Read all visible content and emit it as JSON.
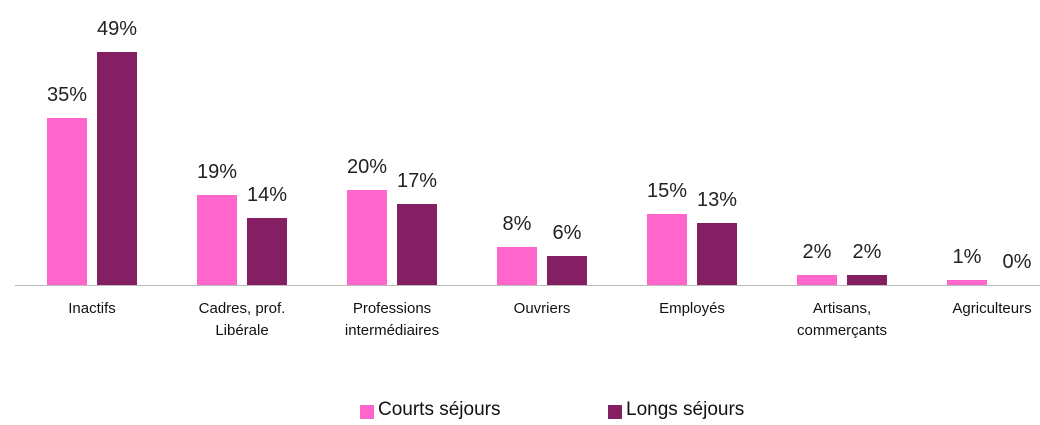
{
  "chart_data": {
    "type": "bar",
    "categories": [
      "Inactifs",
      "Cadres, prof. Libérale",
      "Professions intermédiaires",
      "Ouvriers",
      "Employés",
      "Artisans, commerçants",
      "Agriculteurs"
    ],
    "series": [
      {
        "name": "Courts séjours",
        "color": "#ff66cc",
        "values": [
          35,
          19,
          20,
          8,
          15,
          2,
          1
        ],
        "value_labels": [
          "35%",
          "19%",
          "20%",
          "8%",
          "15%",
          "2%",
          "1%"
        ]
      },
      {
        "name": "Longs séjours",
        "color": "#841f63",
        "values": [
          49,
          14,
          17,
          6,
          13,
          2,
          0
        ],
        "value_labels": [
          "49%",
          "14%",
          "17%",
          "6%",
          "13%",
          "2%",
          "0%"
        ]
      }
    ],
    "legend": "bottom"
  }
}
